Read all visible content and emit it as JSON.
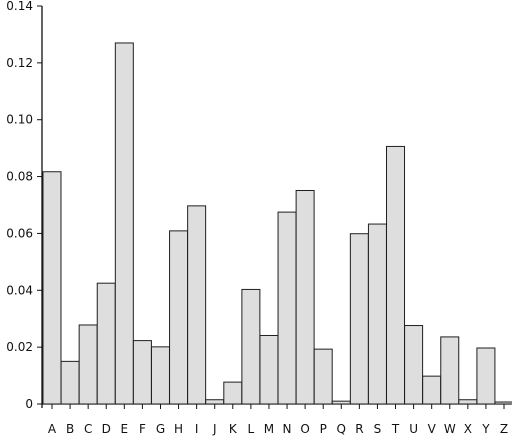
{
  "chart_data": {
    "type": "bar",
    "title": "",
    "xlabel": "",
    "ylabel": "",
    "ylim": [
      0,
      0.14
    ],
    "yticks": [
      "0",
      "0.02",
      "0.04",
      "0.06",
      "0.08",
      "0.10",
      "0.12",
      "0.14"
    ],
    "categories": [
      "A",
      "B",
      "C",
      "D",
      "E",
      "F",
      "G",
      "H",
      "I",
      "J",
      "K",
      "L",
      "M",
      "N",
      "O",
      "P",
      "Q",
      "R",
      "S",
      "T",
      "U",
      "V",
      "W",
      "X",
      "Y",
      "Z"
    ],
    "values": [
      0.0817,
      0.015,
      0.0278,
      0.0425,
      0.127,
      0.0223,
      0.0201,
      0.0609,
      0.0697,
      0.0015,
      0.0077,
      0.0403,
      0.0241,
      0.0675,
      0.0751,
      0.0193,
      0.001,
      0.0599,
      0.0633,
      0.0906,
      0.0276,
      0.0098,
      0.0236,
      0.0015,
      0.0197,
      0.0007
    ],
    "grid": false,
    "legend": "none",
    "colors": {
      "bar_fill": "#dedede",
      "bar_stroke": "#1f1f1f",
      "axis": "#111111"
    }
  }
}
